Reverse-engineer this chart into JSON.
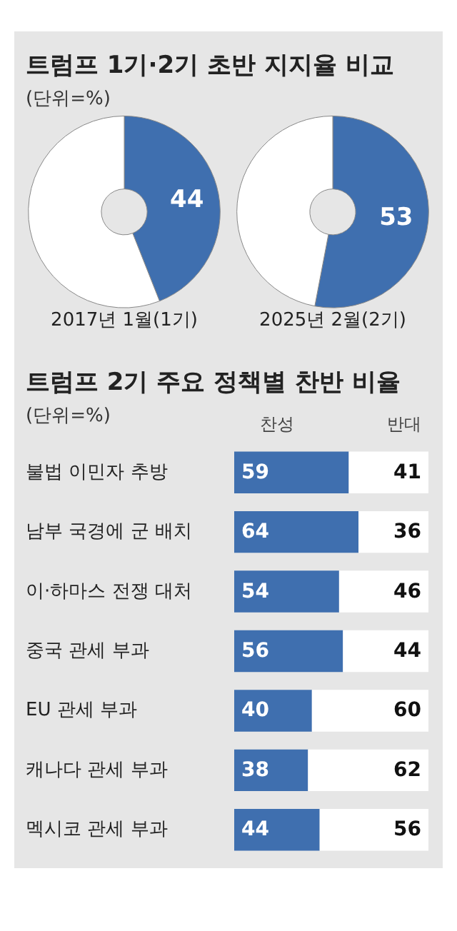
{
  "chart_data": [
    {
      "type": "donut",
      "title": "트럼프 1기·2기 초반 지지율 비교",
      "subtitle": "(단위=%)",
      "xlabel": "2017년 1월(1기)",
      "categories": [
        null,
        null
      ],
      "values": [
        44,
        56
      ],
      "colors": [
        "#3f6faf",
        "#ffffff"
      ],
      "value_labels": [
        "44",
        null
      ]
    },
    {
      "type": "donut",
      "xlabel": "2025년 2월(2기)",
      "categories": [
        null,
        null
      ],
      "values": [
        53,
        47
      ],
      "colors": [
        "#3f6faf",
        "#ffffff"
      ],
      "value_labels": [
        "53",
        null
      ]
    },
    {
      "type": "bar",
      "orientation": "horizontal",
      "stacked": true,
      "title": "트럼프 2기 주요 정책별 찬반 비율",
      "subtitle": "(단위=%)",
      "legend": "top right",
      "data_labels": true,
      "categories": [
        "불법 이민자 추방",
        "남부 국경에 군 배치",
        "이·하마스 전쟁 대처",
        "중국 관세 부과",
        "EU 관세 부과",
        "캐나다 관세 부과",
        "멕시코 관세 부과"
      ],
      "series": [
        {
          "name": "찬성",
          "color": "#3f6faf",
          "values": [
            59,
            64,
            54,
            56,
            40,
            38,
            44
          ]
        },
        {
          "name": "반대",
          "color": "#ffffff",
          "values": [
            41,
            36,
            46,
            44,
            60,
            62,
            56
          ]
        }
      ]
    }
  ]
}
